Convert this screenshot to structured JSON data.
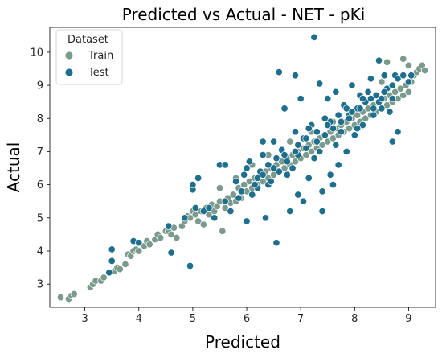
{
  "chart_data": {
    "type": "scatter",
    "title": "Predicted vs Actual - NET - pKi",
    "xlabel": "Predicted",
    "ylabel": "Actual",
    "xlim": [
      2.35,
      9.5
    ],
    "ylim": [
      2.3,
      10.75
    ],
    "xticks": [
      3,
      4,
      5,
      6,
      7,
      8,
      9
    ],
    "yticks": [
      3,
      4,
      5,
      6,
      7,
      8,
      9,
      10
    ],
    "grid": false,
    "legend": {
      "title": "Dataset",
      "placement": "top-left",
      "entries": [
        "Train",
        "Test"
      ]
    },
    "colors": {
      "Train": "#7a9a8c",
      "Test": "#1e6f8e"
    },
    "series": [
      {
        "name": "Train",
        "points": [
          [
            2.55,
            2.6
          ],
          [
            2.7,
            2.55
          ],
          [
            2.75,
            2.65
          ],
          [
            2.8,
            2.7
          ],
          [
            3.1,
            2.9
          ],
          [
            3.15,
            3.0
          ],
          [
            3.2,
            3.1
          ],
          [
            3.3,
            3.1
          ],
          [
            3.35,
            3.2
          ],
          [
            3.55,
            3.4
          ],
          [
            3.6,
            3.5
          ],
          [
            3.65,
            3.45
          ],
          [
            3.75,
            3.6
          ],
          [
            3.8,
            3.9
          ],
          [
            3.85,
            3.85
          ],
          [
            3.9,
            4.0
          ],
          [
            3.95,
            4.05
          ],
          [
            4.0,
            4.0
          ],
          [
            4.1,
            4.15
          ],
          [
            4.15,
            4.3
          ],
          [
            4.2,
            4.2
          ],
          [
            4.3,
            4.35
          ],
          [
            4.35,
            4.5
          ],
          [
            4.4,
            4.4
          ],
          [
            4.5,
            4.6
          ],
          [
            4.55,
            4.6
          ],
          [
            4.6,
            4.5
          ],
          [
            4.65,
            4.7
          ],
          [
            4.7,
            4.4
          ],
          [
            4.8,
            4.75
          ],
          [
            4.85,
            4.9
          ],
          [
            4.9,
            5.05
          ],
          [
            4.95,
            5.0
          ],
          [
            5.0,
            5.2
          ],
          [
            5.05,
            5.1
          ],
          [
            5.1,
            4.9
          ],
          [
            5.15,
            5.2
          ],
          [
            5.2,
            4.8
          ],
          [
            5.25,
            5.3
          ],
          [
            5.3,
            5.1
          ],
          [
            5.35,
            5.4
          ],
          [
            5.4,
            5.2
          ],
          [
            5.45,
            5.35
          ],
          [
            5.5,
            5.5
          ],
          [
            5.55,
            4.6
          ],
          [
            5.6,
            5.3
          ],
          [
            5.65,
            5.6
          ],
          [
            5.7,
            5.45
          ],
          [
            5.75,
            5.7
          ],
          [
            5.8,
            5.5
          ],
          [
            5.85,
            5.9
          ],
          [
            5.9,
            5.6
          ],
          [
            5.95,
            6.0
          ],
          [
            6.0,
            5.8
          ],
          [
            6.05,
            6.1
          ],
          [
            6.1,
            5.9
          ],
          [
            6.15,
            6.2
          ],
          [
            6.2,
            6.0
          ],
          [
            6.25,
            6.3
          ],
          [
            6.3,
            6.1
          ],
          [
            6.35,
            6.4
          ],
          [
            6.4,
            6.2
          ],
          [
            6.45,
            6.5
          ],
          [
            6.5,
            6.3
          ],
          [
            6.55,
            6.6
          ],
          [
            6.6,
            6.4
          ],
          [
            6.65,
            6.7
          ],
          [
            6.7,
            6.5
          ],
          [
            6.75,
            6.8
          ],
          [
            6.8,
            6.6
          ],
          [
            6.85,
            6.9
          ],
          [
            6.9,
            6.7
          ],
          [
            6.95,
            7.0
          ],
          [
            7.0,
            6.8
          ],
          [
            7.05,
            7.1
          ],
          [
            7.1,
            6.9
          ],
          [
            7.15,
            7.2
          ],
          [
            7.2,
            7.0
          ],
          [
            7.25,
            7.3
          ],
          [
            7.3,
            7.1
          ],
          [
            7.35,
            7.4
          ],
          [
            7.4,
            7.2
          ],
          [
            7.45,
            7.5
          ],
          [
            7.5,
            7.3
          ],
          [
            7.55,
            7.6
          ],
          [
            7.6,
            7.4
          ],
          [
            7.65,
            7.7
          ],
          [
            7.7,
            7.5
          ],
          [
            7.75,
            7.8
          ],
          [
            7.8,
            7.6
          ],
          [
            7.85,
            7.9
          ],
          [
            7.9,
            7.7
          ],
          [
            7.95,
            8.0
          ],
          [
            8.0,
            7.8
          ],
          [
            8.05,
            8.1
          ],
          [
            8.1,
            7.9
          ],
          [
            8.15,
            8.2
          ],
          [
            8.2,
            8.0
          ],
          [
            8.25,
            8.3
          ],
          [
            8.3,
            8.1
          ],
          [
            8.35,
            8.4
          ],
          [
            8.4,
            8.2
          ],
          [
            8.45,
            8.5
          ],
          [
            8.5,
            8.3
          ],
          [
            8.55,
            8.6
          ],
          [
            8.6,
            8.4
          ],
          [
            8.65,
            8.7
          ],
          [
            8.7,
            8.5
          ],
          [
            8.75,
            8.8
          ],
          [
            8.8,
            8.6
          ],
          [
            8.85,
            8.9
          ],
          [
            8.9,
            8.7
          ],
          [
            8.95,
            9.0
          ],
          [
            9.0,
            8.8
          ],
          [
            9.05,
            9.1
          ],
          [
            9.1,
            9.3
          ],
          [
            9.15,
            9.4
          ],
          [
            9.2,
            9.5
          ],
          [
            9.25,
            9.6
          ],
          [
            9.3,
            9.45
          ],
          [
            8.6,
            9.7
          ],
          [
            8.9,
            9.8
          ],
          [
            9.0,
            9.6
          ],
          [
            8.5,
            9.1
          ],
          [
            8.2,
            8.5
          ],
          [
            7.6,
            7.9
          ],
          [
            7.2,
            7.6
          ],
          [
            6.8,
            7.3
          ],
          [
            6.4,
            6.9
          ],
          [
            6.1,
            6.6
          ],
          [
            5.8,
            6.2
          ],
          [
            5.5,
            5.9
          ]
        ]
      },
      {
        "name": "Test",
        "points": [
          [
            3.45,
            3.35
          ],
          [
            3.5,
            3.7
          ],
          [
            3.5,
            4.05
          ],
          [
            3.9,
            4.3
          ],
          [
            4.0,
            4.25
          ],
          [
            4.6,
            3.95
          ],
          [
            4.55,
            4.75
          ],
          [
            4.95,
            3.55
          ],
          [
            5.0,
            5.85
          ],
          [
            5.0,
            6.0
          ],
          [
            5.1,
            6.2
          ],
          [
            5.2,
            5.2
          ],
          [
            5.3,
            5.3
          ],
          [
            5.4,
            5.0
          ],
          [
            5.5,
            6.6
          ],
          [
            5.6,
            5.5
          ],
          [
            5.7,
            5.2
          ],
          [
            5.8,
            6.1
          ],
          [
            5.9,
            5.8
          ],
          [
            6.0,
            6.5
          ],
          [
            6.1,
            5.7
          ],
          [
            6.2,
            6.2
          ],
          [
            6.3,
            6.9
          ],
          [
            6.35,
            5.0
          ],
          [
            6.4,
            6.0
          ],
          [
            6.5,
            7.3
          ],
          [
            6.55,
            4.25
          ],
          [
            6.6,
            6.4
          ],
          [
            6.7,
            8.3
          ],
          [
            6.75,
            6.7
          ],
          [
            6.8,
            5.2
          ],
          [
            6.9,
            7.6
          ],
          [
            6.95,
            6.9
          ],
          [
            7.0,
            8.6
          ],
          [
            7.05,
            5.5
          ],
          [
            7.1,
            7.1
          ],
          [
            7.15,
            6.2
          ],
          [
            7.2,
            7.8
          ],
          [
            7.25,
            10.45
          ],
          [
            7.3,
            7.3
          ],
          [
            7.35,
            9.05
          ],
          [
            7.4,
            5.8
          ],
          [
            7.45,
            7.5
          ],
          [
            7.5,
            8.6
          ],
          [
            7.55,
            6.3
          ],
          [
            7.6,
            7.7
          ],
          [
            7.65,
            8.8
          ],
          [
            7.7,
            6.6
          ],
          [
            7.75,
            7.9
          ],
          [
            7.8,
            8.4
          ],
          [
            7.85,
            7.0
          ],
          [
            7.9,
            8.1
          ],
          [
            7.95,
            9.0
          ],
          [
            8.0,
            7.5
          ],
          [
            8.05,
            8.3
          ],
          [
            8.1,
            8.7
          ],
          [
            8.15,
            7.8
          ],
          [
            8.2,
            8.5
          ],
          [
            8.3,
            9.2
          ],
          [
            8.35,
            8.1
          ],
          [
            8.4,
            8.7
          ],
          [
            8.5,
            8.3
          ],
          [
            8.55,
            9.3
          ],
          [
            8.6,
            8.9
          ],
          [
            8.7,
            8.6
          ],
          [
            8.75,
            9.3
          ],
          [
            8.8,
            9.2
          ],
          [
            8.9,
            9.3
          ],
          [
            9.0,
            9.1
          ],
          [
            9.05,
            9.3
          ],
          [
            6.0,
            4.9
          ],
          [
            6.2,
            5.9
          ],
          [
            6.45,
            6.1
          ],
          [
            6.65,
            7.05
          ],
          [
            6.85,
            6.5
          ],
          [
            7.05,
            7.4
          ],
          [
            7.25,
            6.8
          ],
          [
            7.45,
            8.0
          ],
          [
            7.65,
            7.2
          ],
          [
            7.85,
            8.3
          ],
          [
            8.05,
            7.7
          ],
          [
            8.25,
            8.8
          ],
          [
            8.45,
            8.5
          ],
          [
            8.65,
            8.2
          ],
          [
            6.05,
            6.7
          ],
          [
            6.25,
            6.4
          ],
          [
            6.4,
            6.6
          ],
          [
            6.55,
            6.8
          ],
          [
            6.75,
            6.3
          ],
          [
            6.95,
            7.2
          ],
          [
            7.15,
            7.7
          ],
          [
            7.35,
            7.0
          ],
          [
            7.55,
            7.9
          ],
          [
            7.75,
            7.6
          ],
          [
            7.95,
            8.2
          ],
          [
            8.15,
            8.6
          ],
          [
            8.35,
            8.3
          ],
          [
            8.55,
            8.8
          ],
          [
            5.85,
            5.6
          ],
          [
            5.95,
            6.3
          ],
          [
            6.15,
            6.0
          ],
          [
            6.3,
            6.3
          ],
          [
            6.5,
            6.5
          ],
          [
            6.7,
            6.9
          ],
          [
            6.9,
            7.0
          ],
          [
            7.1,
            7.4
          ],
          [
            7.3,
            7.6
          ],
          [
            7.5,
            7.8
          ],
          [
            7.7,
            8.1
          ],
          [
            7.9,
            8.0
          ],
          [
            8.1,
            8.3
          ],
          [
            8.3,
            8.6
          ],
          [
            8.5,
            8.6
          ],
          [
            8.7,
            9.0
          ],
          [
            6.6,
            9.4
          ],
          [
            6.9,
            9.3
          ],
          [
            8.45,
            9.75
          ],
          [
            6.95,
            5.7
          ],
          [
            7.4,
            5.2
          ],
          [
            8.8,
            7.6
          ],
          [
            8.7,
            7.3
          ],
          [
            7.6,
            6.0
          ],
          [
            6.3,
            7.3
          ],
          [
            5.6,
            6.6
          ],
          [
            4.85,
            5.0
          ],
          [
            5.05,
            5.3
          ]
        ]
      }
    ]
  }
}
